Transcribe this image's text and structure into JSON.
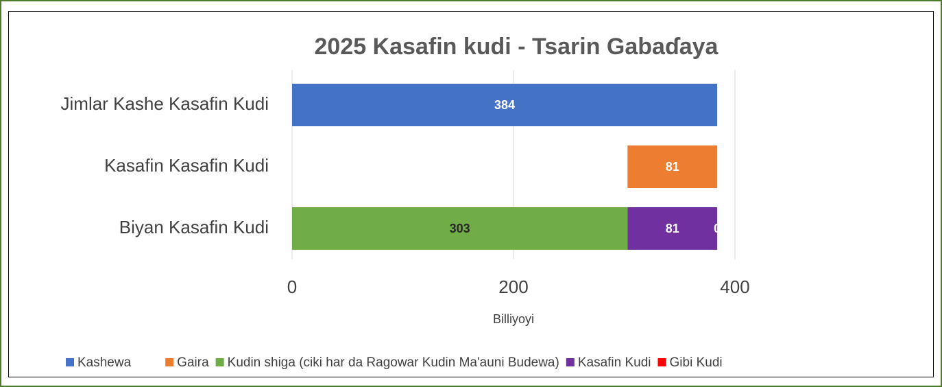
{
  "chart_data": {
    "type": "bar",
    "orientation": "horizontal",
    "stacked": true,
    "title": "2025 Kasafin kudi - Tsarin Gabaɗaya",
    "x_label": "Billiyoyi",
    "categories": [
      "Jimlar Kashe Kasafin Kudi",
      "Kasafin Kasafin Kudi",
      "Biyan Kasafin Kudi"
    ],
    "series": [
      {
        "name": "Kashewa",
        "color": "#4472c4",
        "label_color": "#ffffff",
        "values": [
          384,
          null,
          null
        ]
      },
      {
        "name": null,
        "color": null,
        "values": [
          null,
          303,
          null
        ]
      },
      {
        "name": "Gaira",
        "color": "#ed7d31",
        "label_color": "#ffffff",
        "values": [
          null,
          81,
          null
        ]
      },
      {
        "name": "Kudin shiga (ciki har da Ragowar Kudin Ma'auni Budewa)",
        "color": "#70ad47",
        "label_color": "#262626",
        "values": [
          null,
          null,
          303
        ]
      },
      {
        "name": "Kasafin Kudi",
        "color": "#7030a0",
        "label_color": "#ffffff",
        "values": [
          null,
          null,
          81
        ]
      },
      {
        "name": "Gibi Kudi",
        "color": "#ff0000",
        "label_color": "#ffffff",
        "values": [
          null,
          null,
          0
        ]
      }
    ],
    "xlim": [
      0,
      400
    ],
    "xticks": [
      0,
      200,
      400
    ],
    "grid": true,
    "legend": "bottom"
  }
}
